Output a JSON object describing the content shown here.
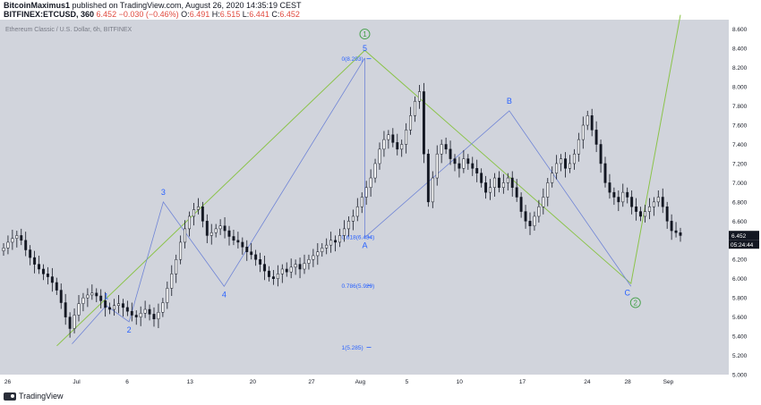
{
  "header": {
    "author": "BitcoinMaximus1",
    "published_text": "published on TradingView.com, August 26, 2020 14:35:19 CEST",
    "symbol": "BITFINEX:ETCUSD, 360",
    "price": "6.452",
    "change": "−0.030 (−0.46%)",
    "o_label": "O:",
    "o_value": "6.491",
    "h_label": "H:",
    "h_value": "6.515",
    "l_label": "L:",
    "l_value": "6.441",
    "c_label": "C:",
    "c_value": "6.452"
  },
  "footer": {
    "brand": "TradingView"
  },
  "colors": {
    "plot_bg": "#d1d4dc",
    "candle": "#131722",
    "green_line": "#8bc34a",
    "fib_line": "#6f84d6",
    "label_blue": "#2962ff",
    "circle_green": "#43a047",
    "price_tag_bg": "#131722"
  },
  "chart_data": {
    "type": "candlestick",
    "title": "Ethereum Classic / U.S. Dollar, 6h, BITFINEX",
    "ylim": [
      5.0,
      8.7
    ],
    "y_ticks": [
      "5.000",
      "5.200",
      "5.400",
      "5.600",
      "5.800",
      "6.000",
      "6.200",
      "6.400",
      "6.600",
      "6.800",
      "7.000",
      "7.200",
      "7.400",
      "7.600",
      "7.800",
      "8.000",
      "8.200",
      "8.400",
      "8.600"
    ],
    "x_tick_labels": [
      "26",
      "Jul",
      "6",
      "13",
      "20",
      "27",
      "Aug",
      "5",
      "10",
      "17",
      "24",
      "28",
      "Sep"
    ],
    "x_tick_index": [
      0.2,
      3.6,
      6.1,
      9.2,
      12.3,
      15.2,
      17.6,
      19.9,
      22.5,
      25.6,
      28.8,
      30.8,
      32.8
    ],
    "closes": [
      6.32,
      6.38,
      6.42,
      6.45,
      6.4,
      6.3,
      6.22,
      6.15,
      6.1,
      6.05,
      6.02,
      5.96,
      5.88,
      5.75,
      5.6,
      5.48,
      5.62,
      5.74,
      5.8,
      5.83,
      5.85,
      5.82,
      5.77,
      5.7,
      5.68,
      5.72,
      5.74,
      5.7,
      5.66,
      5.62,
      5.6,
      5.64,
      5.68,
      5.63,
      5.58,
      5.65,
      5.75,
      5.9,
      6.05,
      6.2,
      6.38,
      6.52,
      6.65,
      6.72,
      6.75,
      6.6,
      6.45,
      6.48,
      6.52,
      6.55,
      6.5,
      6.44,
      6.4,
      6.38,
      6.33,
      6.28,
      6.25,
      6.2,
      6.15,
      6.08,
      6.02,
      6.0,
      6.05,
      6.1,
      6.07,
      6.12,
      6.15,
      6.1,
      6.16,
      6.2,
      6.24,
      6.28,
      6.32,
      6.35,
      6.4,
      6.38,
      6.45,
      6.52,
      6.6,
      6.65,
      6.75,
      6.85,
      6.95,
      7.05,
      7.2,
      7.35,
      7.45,
      7.5,
      7.42,
      7.35,
      7.4,
      7.55,
      7.7,
      7.85,
      7.95,
      7.3,
      6.8,
      7.05,
      7.3,
      7.4,
      7.35,
      7.25,
      7.2,
      7.15,
      7.25,
      7.2,
      7.15,
      7.1,
      7.0,
      6.9,
      6.95,
      7.05,
      6.95,
      7.0,
      7.05,
      6.95,
      6.85,
      6.7,
      6.6,
      6.55,
      6.65,
      6.75,
      6.85,
      7.0,
      7.1,
      7.2,
      7.25,
      7.15,
      7.2,
      7.3,
      7.45,
      7.6,
      7.7,
      7.55,
      7.4,
      7.2,
      7.0,
      6.9,
      6.85,
      6.8,
      6.9,
      6.85,
      6.75,
      6.7,
      6.65,
      6.7,
      6.75,
      6.8,
      6.85,
      6.75,
      6.6,
      6.5,
      6.48,
      6.45
    ],
    "last_price": "6.452",
    "countdown": "05:24:44",
    "wave_labels": [
      "1",
      "2",
      "3",
      "4",
      "5",
      "A",
      "B",
      "C"
    ],
    "wave_points": [
      [
        18,
        5.32
      ],
      [
        27,
        5.72
      ],
      [
        33,
        5.55
      ],
      [
        42,
        6.8
      ],
      [
        58,
        5.92
      ],
      [
        95,
        8.3
      ],
      [
        95,
        6.43
      ],
      [
        133,
        7.75
      ],
      [
        165,
        5.92
      ]
    ],
    "major_labels": [
      "1",
      "2"
    ],
    "green_path": [
      [
        14,
        5.3
      ],
      [
        95,
        8.38
      ],
      [
        165,
        5.95
      ],
      [
        178,
        8.75
      ]
    ],
    "fib_levels": [
      {
        "label": "0(8.293)",
        "value": 8.293
      },
      {
        "label": "0.618(6.434)",
        "value": 6.434
      },
      {
        "label": "0.786(5.929)",
        "value": 5.929
      },
      {
        "label": "1(5.285)",
        "value": 5.285
      }
    ]
  }
}
